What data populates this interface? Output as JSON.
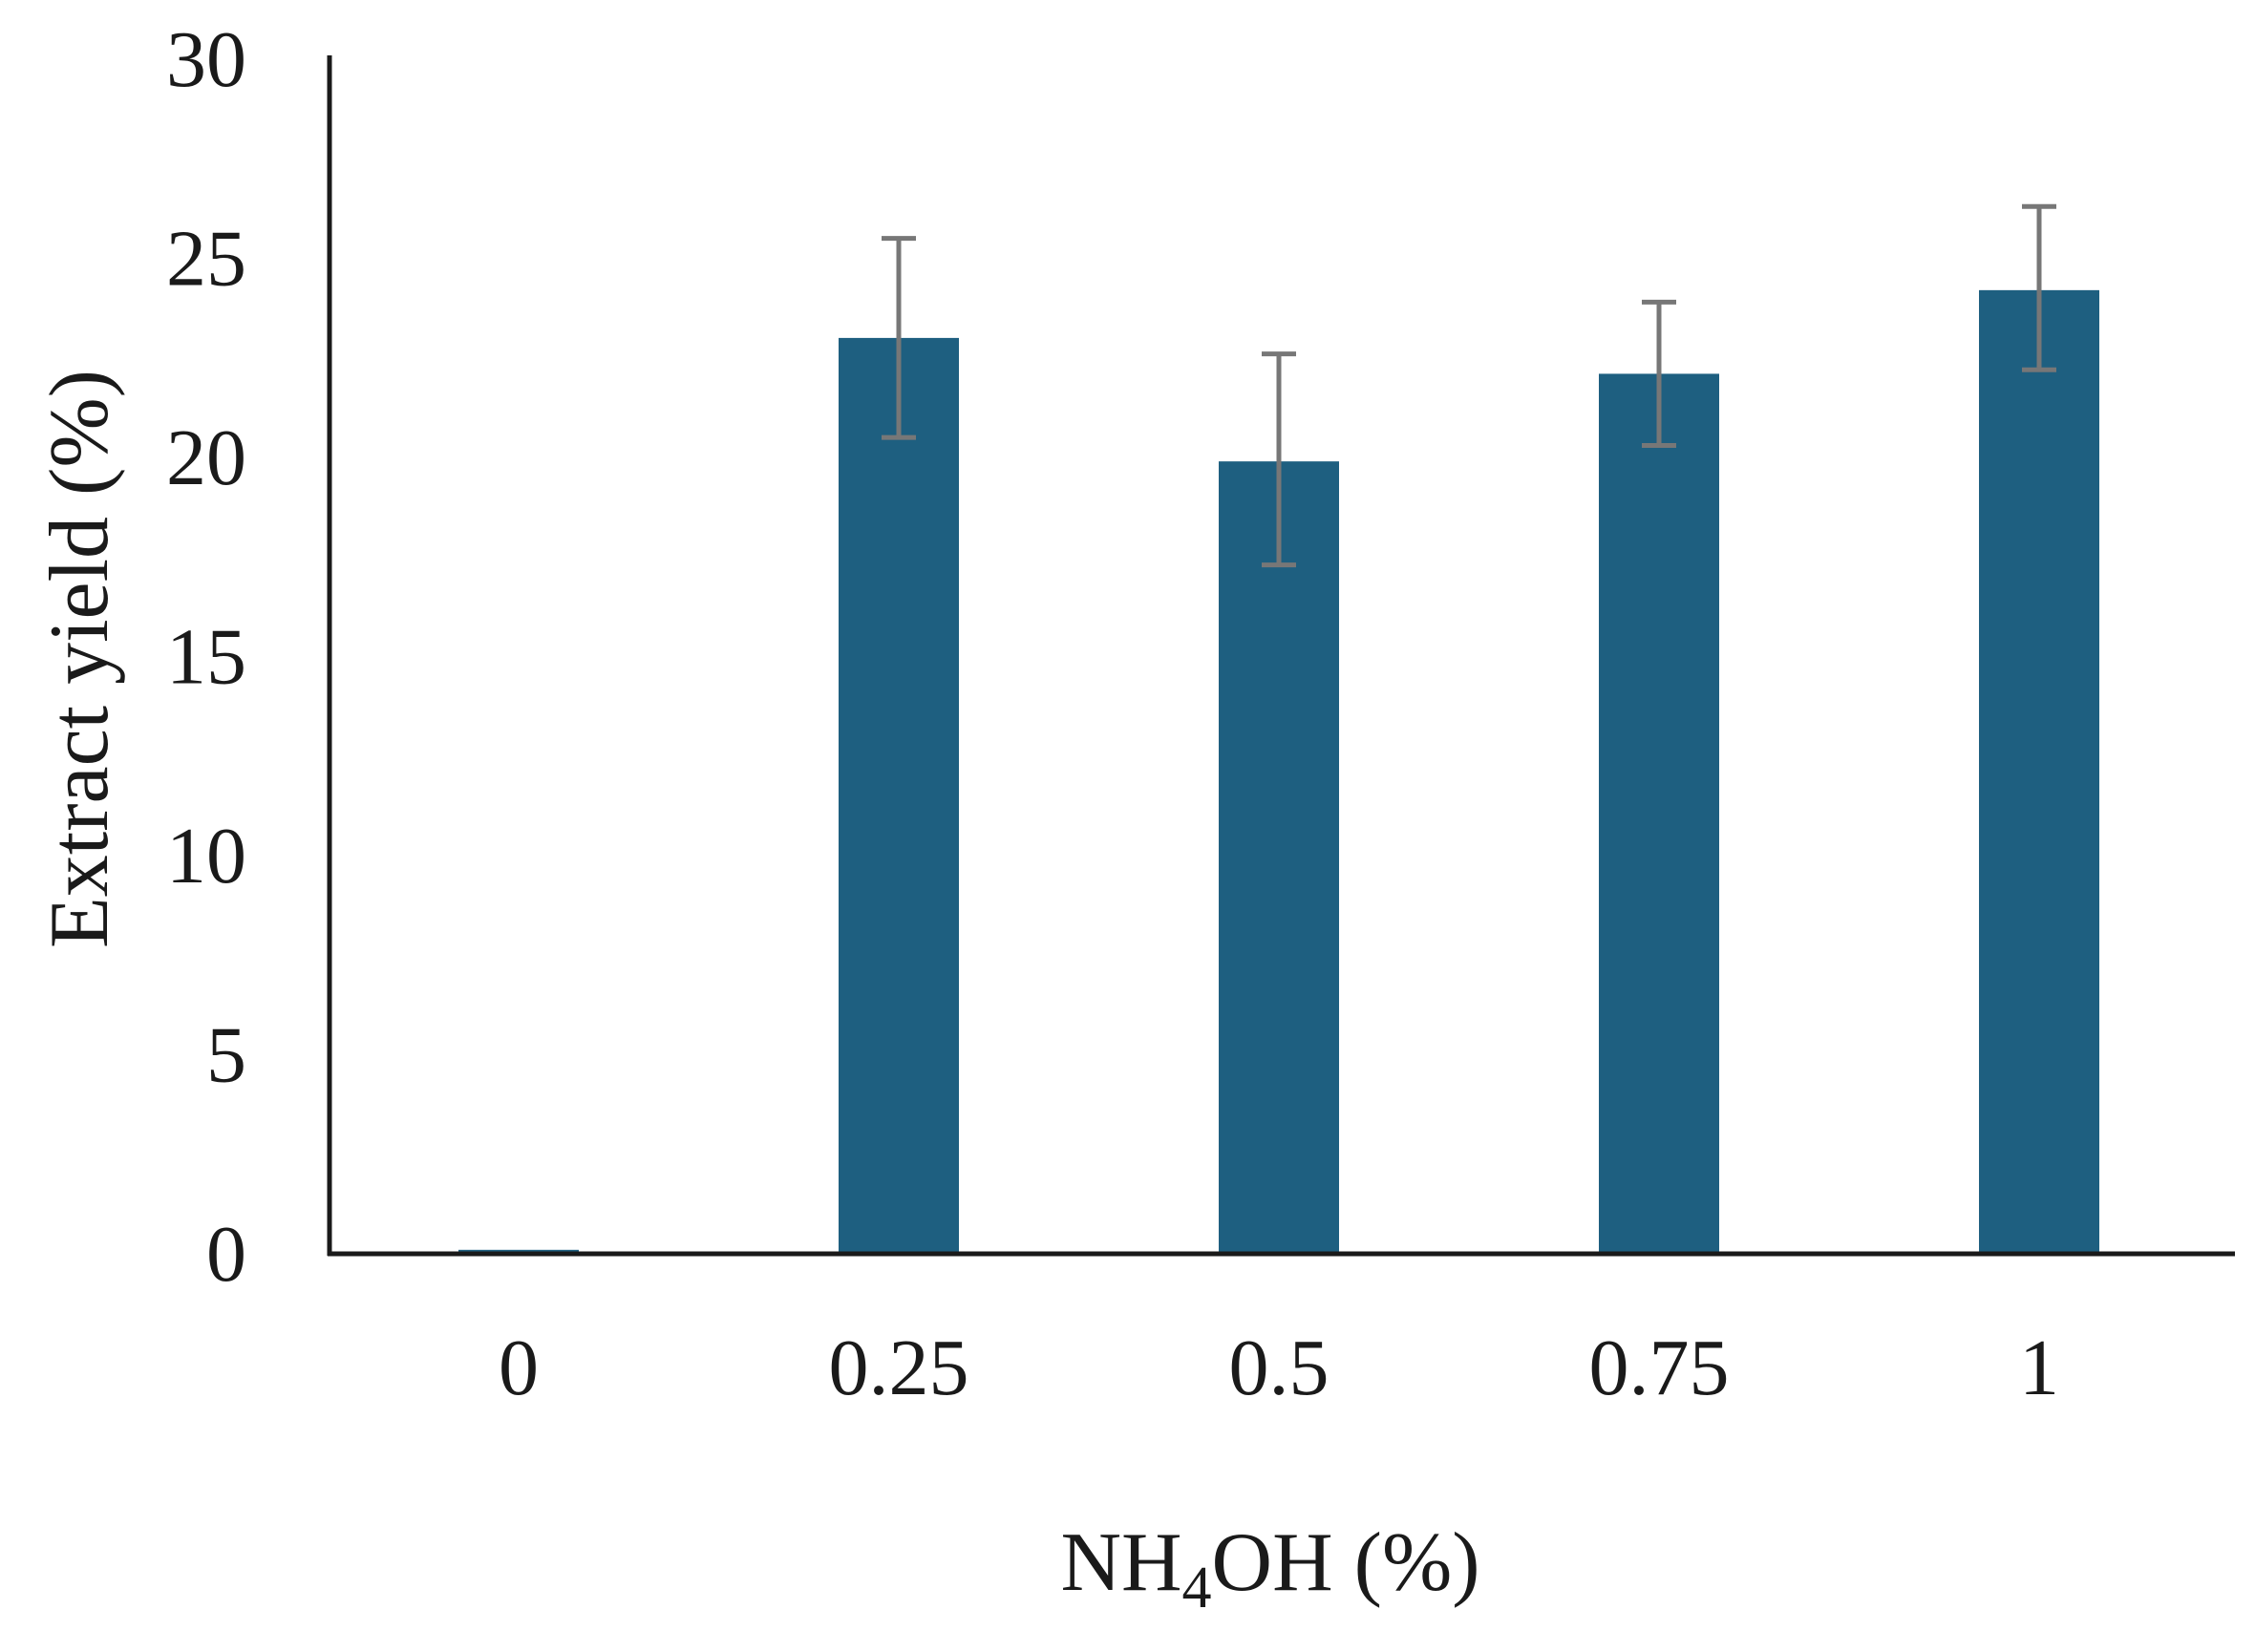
{
  "chart_data": {
    "type": "bar",
    "title": "",
    "xlabel": "NH4OH (%)",
    "xlabel_parts": {
      "pre": "NH",
      "sub": "4",
      "post": "OH (%)"
    },
    "ylabel": "Extract yield (%)",
    "categories": [
      "0",
      "0.25",
      "0.5",
      "0.75",
      "1"
    ],
    "values": [
      0.1,
      23.0,
      19.9,
      22.1,
      24.2
    ],
    "error_low": [
      0.1,
      20.5,
      17.3,
      20.3,
      22.2
    ],
    "error_high": [
      0.1,
      25.5,
      22.6,
      23.9,
      26.3
    ],
    "ylim": [
      0,
      30
    ],
    "yticks": [
      0,
      5,
      10,
      15,
      20,
      25,
      30
    ],
    "grid": false,
    "legend": "none",
    "bar_color": "#1e5f80",
    "error_color": "#777777"
  }
}
